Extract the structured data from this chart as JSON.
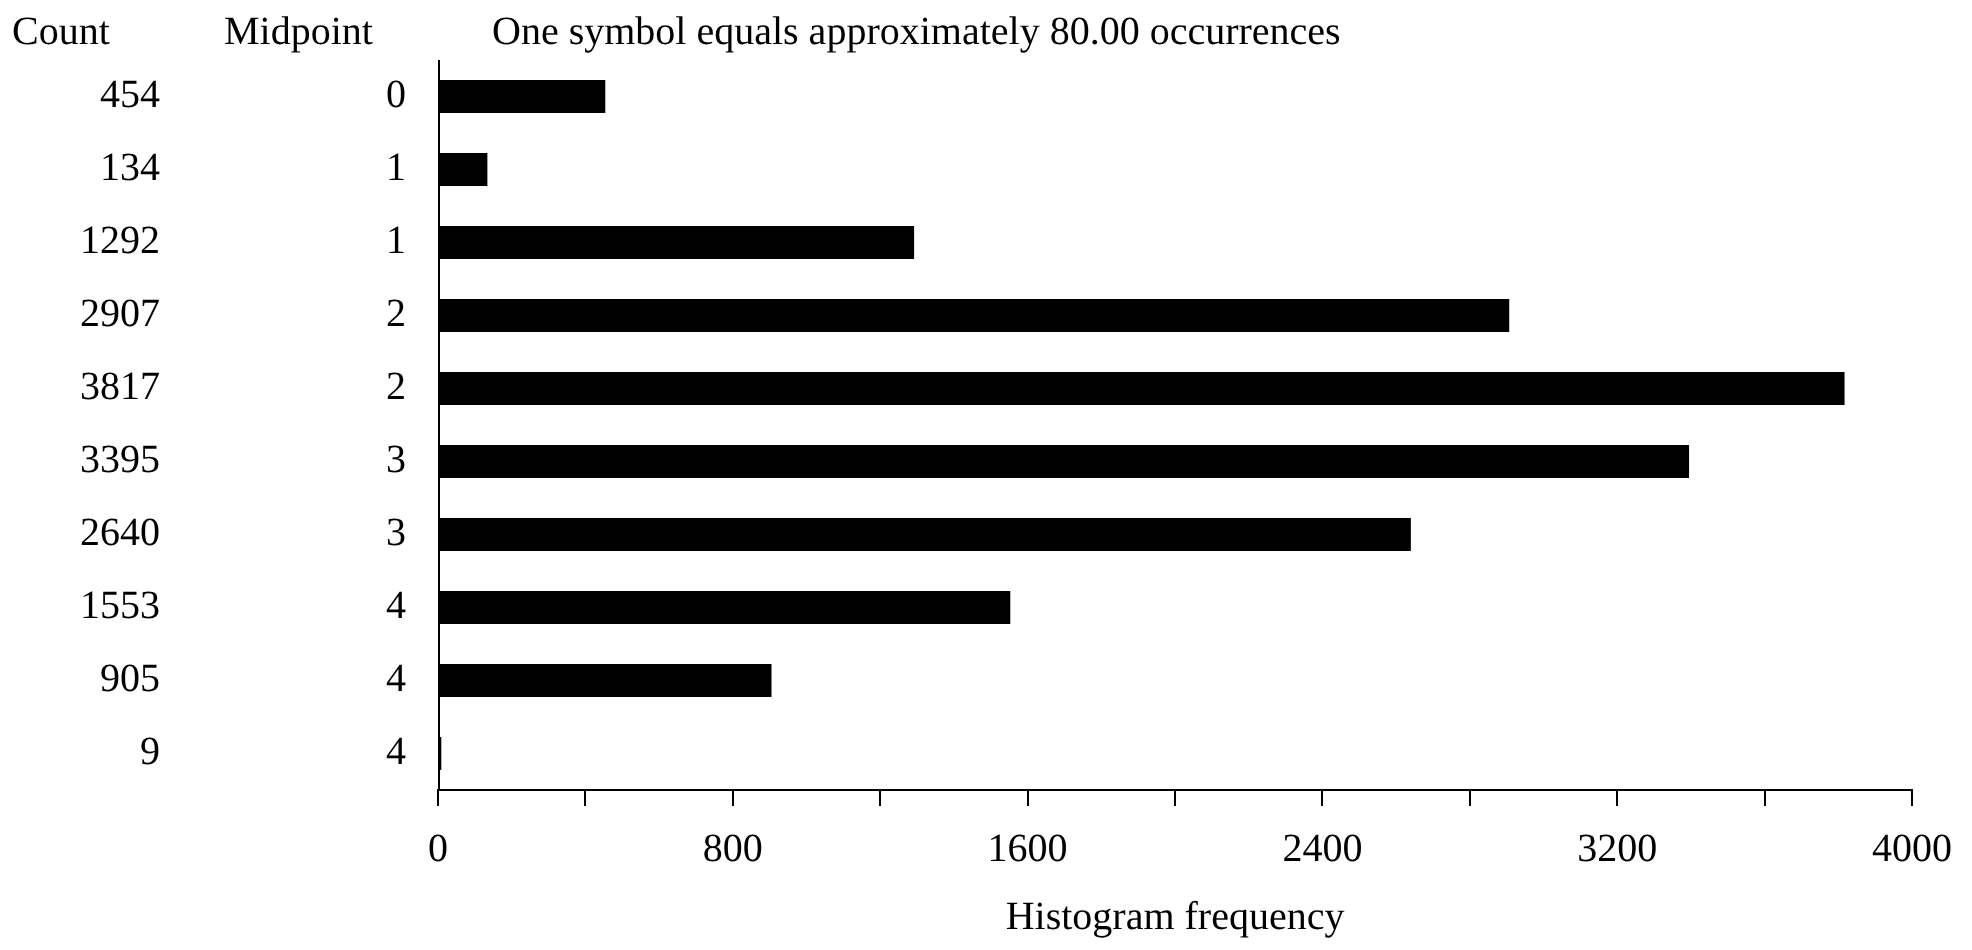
{
  "chart_data": {
    "type": "bar",
    "orientation": "horizontal",
    "title": "One symbol equals approximately 80.00 occurrences",
    "ylabel": "Midpoint",
    "xlabel": "Histogram frequency",
    "annotations": [
      "Count"
    ],
    "categories": [
      "0",
      "1",
      "1",
      "2",
      "2",
      "3",
      "3",
      "4",
      "4",
      "4"
    ],
    "values": [
      454,
      134,
      1292,
      2907,
      3817,
      3395,
      2640,
      1553,
      905,
      9
    ],
    "color": "#000000",
    "data_labels": true,
    "legend": false,
    "grid": false,
    "xlim": [
      0,
      4000
    ],
    "xticks": [
      0,
      {
        "value": 400,
        "label": null
      },
      800,
      {
        "value": 1200,
        "label": null
      },
      1600,
      {
        "value": 2000,
        "label": null
      },
      2400,
      {
        "value": 2800,
        "label": null
      },
      3200,
      {
        "value": 3600,
        "label": null
      },
      4000
    ]
  }
}
